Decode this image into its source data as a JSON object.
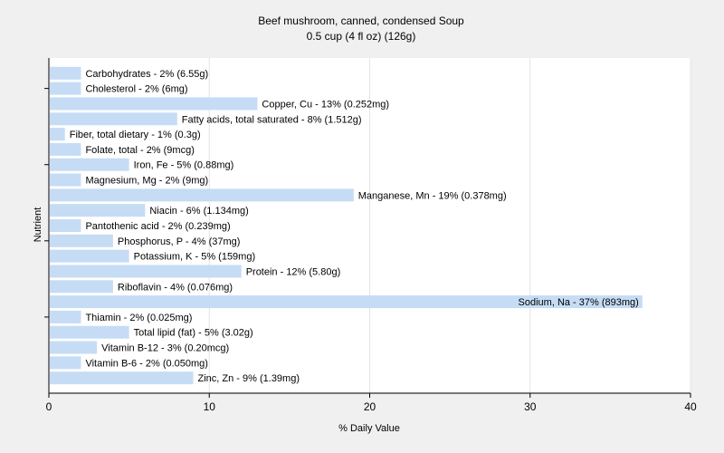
{
  "chart_data": {
    "type": "bar",
    "orientation": "horizontal",
    "title": "Beef mushroom, canned, condensed Soup",
    "subtitle": "0.5 cup (4 fl oz) (126g)",
    "xlabel": "% Daily Value",
    "ylabel": "Nutrient",
    "xlim": [
      0,
      40
    ],
    "xticks": [
      "0",
      "10",
      "20",
      "30",
      "40"
    ],
    "grid": true,
    "bar_color": "#c6dcf5",
    "categories": [
      "Carbohydrates",
      "Cholesterol",
      "Copper, Cu",
      "Fatty acids, total saturated",
      "Fiber, total dietary",
      "Folate, total",
      "Iron, Fe",
      "Magnesium, Mg",
      "Manganese, Mn",
      "Niacin",
      "Pantothenic acid",
      "Phosphorus, P",
      "Potassium, K",
      "Protein",
      "Riboflavin",
      "Sodium, Na",
      "Thiamin",
      "Total lipid (fat)",
      "Vitamin B-12",
      "Vitamin B-6",
      "Zinc, Zn"
    ],
    "values": [
      2,
      2,
      13,
      8,
      1,
      2,
      5,
      2,
      19,
      6,
      2,
      4,
      5,
      12,
      4,
      37,
      2,
      5,
      3,
      2,
      9
    ],
    "labels": [
      "Carbohydrates - 2% (6.55g)",
      "Cholesterol - 2% (6mg)",
      "Copper, Cu - 13% (0.252mg)",
      "Fatty acids, total saturated - 8% (1.512g)",
      "Fiber, total dietary - 1% (0.3g)",
      "Folate, total - 2% (9mcg)",
      "Iron, Fe - 5% (0.88mg)",
      "Magnesium, Mg - 2% (9mg)",
      "Manganese, Mn - 19% (0.378mg)",
      "Niacin - 6% (1.134mg)",
      "Pantothenic acid - 2% (0.239mg)",
      "Phosphorus, P - 4% (37mg)",
      "Potassium, K - 5% (159mg)",
      "Protein - 12% (5.80g)",
      "Riboflavin - 4% (0.076mg)",
      "Sodium, Na - 37% (893mg)",
      "Thiamin - 2% (0.025mg)",
      "Total lipid (fat) - 5% (3.02g)",
      "Vitamin B-12 - 3% (0.20mcg)",
      "Vitamin B-6 - 2% (0.050mg)",
      "Zinc, Zn - 9% (1.39mg)"
    ]
  }
}
